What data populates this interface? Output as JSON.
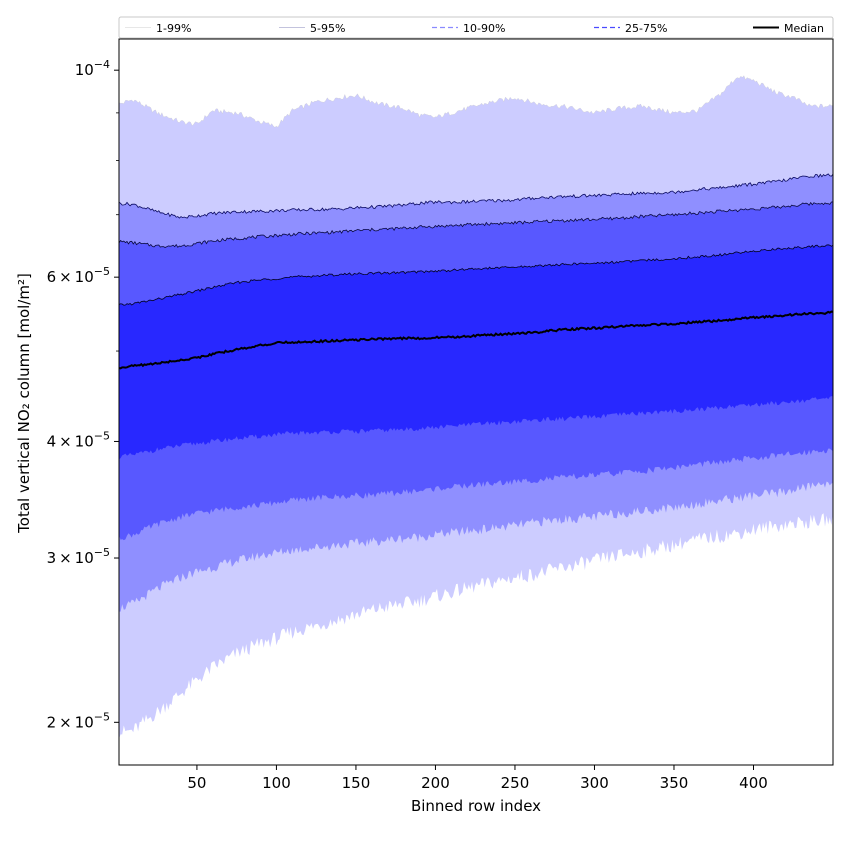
{
  "chart_data": {
    "type": "area",
    "title": "",
    "xlabel": "Binned row index",
    "ylabel": "Total vertical NO₂ column [mol/m²]",
    "xlim": [
      1,
      450
    ],
    "ylim": [
      1.8e-05,
      0.000108
    ],
    "yscale": "log",
    "grid": false,
    "legend_position": "top (expanded across full width)",
    "x_ticks": [
      50,
      100,
      150,
      200,
      250,
      300,
      350,
      400
    ],
    "x_tick_labels": [
      "50",
      "100",
      "150",
      "200",
      "250",
      "300",
      "350",
      "400"
    ],
    "y_ticks": [
      {
        "value": 2e-05,
        "mantissa": "2",
        "exponent": "−5"
      },
      {
        "value": 3e-05,
        "mantissa": "3",
        "exponent": "−5"
      },
      {
        "value": 4e-05,
        "mantissa": "4",
        "exponent": "−5"
      },
      {
        "value": 6e-05,
        "mantissa": "6",
        "exponent": "−5"
      },
      {
        "value": 0.0001,
        "mantissa": "",
        "exponent": "−4"
      }
    ],
    "y_minor_ticks": [
      5e-05,
      7e-05,
      8e-05,
      9e-05
    ],
    "tick_times": "×",
    "tick_base": "10",
    "x": [
      1,
      10,
      25,
      40,
      50,
      60,
      75,
      90,
      100,
      110,
      125,
      140,
      150,
      165,
      180,
      190,
      200,
      215,
      230,
      250,
      265,
      280,
      300,
      315,
      330,
      350,
      365,
      380,
      390,
      400,
      415,
      425,
      435,
      450
    ],
    "series": [
      {
        "name": "1-99%",
        "band": true,
        "color": "#ccccff",
        "line_color": "#c6c6c6",
        "lower": [
          1.95e-05,
          1.96e-05,
          2.05e-05,
          2.15e-05,
          2.22e-05,
          2.29e-05,
          2.37e-05,
          2.43e-05,
          2.46e-05,
          2.5e-05,
          2.54e-05,
          2.58e-05,
          2.61e-05,
          2.65e-05,
          2.68e-05,
          2.7e-05,
          2.73e-05,
          2.77e-05,
          2.81e-05,
          2.86e-05,
          2.89e-05,
          2.93e-05,
          2.98e-05,
          3.02e-05,
          3.05e-05,
          3.1e-05,
          3.14e-05,
          3.17e-05,
          3.19e-05,
          3.22e-05,
          3.25e-05,
          3.27e-05,
          3.28e-05,
          3.3e-05
        ],
        "upper": [
          9.2e-05,
          9.3e-05,
          9e-05,
          8.8e-05,
          8.75e-05,
          9.05e-05,
          9e-05,
          8.8e-05,
          8.7e-05,
          9.05e-05,
          9.25e-05,
          9.35e-05,
          9.4e-05,
          9.2e-05,
          9.1e-05,
          8.95e-05,
          8.9e-05,
          9.05e-05,
          9.2e-05,
          9.35e-05,
          9.2e-05,
          9.15e-05,
          9e-05,
          9.1e-05,
          9.15e-05,
          9e-05,
          9.05e-05,
          9.45e-05,
          9.85e-05,
          9.75e-05,
          9.45e-05,
          9.35e-05,
          9.15e-05,
          9.15e-05
        ]
      },
      {
        "name": "5-95%",
        "band": true,
        "color": "#8f8fff",
        "line_color": "#0a0a60",
        "lower": [
          2.65e-05,
          2.68e-05,
          2.78e-05,
          2.86e-05,
          2.9e-05,
          2.93e-05,
          2.98e-05,
          3.02e-05,
          3.04e-05,
          3.06e-05,
          3.08e-05,
          3.1e-05,
          3.11e-05,
          3.13e-05,
          3.15e-05,
          3.16e-05,
          3.18e-05,
          3.2e-05,
          3.22e-05,
          3.25e-05,
          3.28e-05,
          3.3e-05,
          3.32e-05,
          3.35e-05,
          3.37e-05,
          3.4e-05,
          3.43e-05,
          3.46e-05,
          3.48e-05,
          3.5e-05,
          3.52e-05,
          3.55e-05,
          3.58e-05,
          3.62e-05
        ],
        "upper": [
          7.2e-05,
          7.18e-05,
          7.05e-05,
          6.95e-05,
          6.98e-05,
          7.02e-05,
          7.05e-05,
          7.06e-05,
          7.07e-05,
          7.08e-05,
          7.09e-05,
          7.1e-05,
          7.12e-05,
          7.14e-05,
          7.17e-05,
          7.2e-05,
          7.22e-05,
          7.22e-05,
          7.24e-05,
          7.26e-05,
          7.3e-05,
          7.32e-05,
          7.34e-05,
          7.36e-05,
          7.38e-05,
          7.4e-05,
          7.45e-05,
          7.48e-05,
          7.52e-05,
          7.55e-05,
          7.6e-05,
          7.65e-05,
          7.7e-05,
          7.72e-05
        ]
      },
      {
        "name": "10-90%",
        "band": true,
        "color": "#5858ff",
        "line_color": "#0a0a40",
        "lower": [
          3.15e-05,
          3.18e-05,
          3.26e-05,
          3.32e-05,
          3.35e-05,
          3.37e-05,
          3.4e-05,
          3.42e-05,
          3.44e-05,
          3.46e-05,
          3.48e-05,
          3.49e-05,
          3.5e-05,
          3.51e-05,
          3.53e-05,
          3.54e-05,
          3.56e-05,
          3.58e-05,
          3.6e-05,
          3.62e-05,
          3.64e-05,
          3.66e-05,
          3.68e-05,
          3.7e-05,
          3.72e-05,
          3.75e-05,
          3.78e-05,
          3.8e-05,
          3.82e-05,
          3.84e-05,
          3.86e-05,
          3.88e-05,
          3.9e-05,
          3.92e-05
        ],
        "upper": [
          6.55e-05,
          6.53e-05,
          6.48e-05,
          6.48e-05,
          6.52e-05,
          6.56e-05,
          6.6e-05,
          6.63e-05,
          6.65e-05,
          6.67e-05,
          6.69e-05,
          6.71e-05,
          6.73e-05,
          6.75e-05,
          6.77e-05,
          6.79e-05,
          6.8e-05,
          6.82e-05,
          6.84e-05,
          6.86e-05,
          6.88e-05,
          6.9e-05,
          6.92e-05,
          6.94e-05,
          6.97e-05,
          7e-05,
          7.03e-05,
          7.06e-05,
          7.08e-05,
          7.1e-05,
          7.13e-05,
          7.16e-05,
          7.19e-05,
          7.21e-05
        ]
      },
      {
        "name": "25-75%",
        "band": true,
        "color": "#2828ff",
        "line_color": "#000020",
        "lower": [
          3.85e-05,
          3.87e-05,
          3.92e-05,
          3.96e-05,
          3.98e-05,
          4e-05,
          4.03e-05,
          4.05e-05,
          4.07e-05,
          4.08e-05,
          4.09e-05,
          4.1e-05,
          4.1e-05,
          4.11e-05,
          4.12e-05,
          4.13e-05,
          4.14e-05,
          4.16e-05,
          4.18e-05,
          4.2e-05,
          4.22e-05,
          4.23e-05,
          4.25e-05,
          4.27e-05,
          4.29e-05,
          4.31e-05,
          4.33e-05,
          4.35e-05,
          4.37e-05,
          4.38e-05,
          4.4e-05,
          4.42e-05,
          4.43e-05,
          4.45e-05
        ],
        "upper": [
          5.6e-05,
          5.62e-05,
          5.68e-05,
          5.75e-05,
          5.8e-05,
          5.85e-05,
          5.92e-05,
          5.96e-05,
          5.98e-05,
          6e-05,
          6.02e-05,
          6.04e-05,
          6.05e-05,
          6.06e-05,
          6.07e-05,
          6.08e-05,
          6.09e-05,
          6.11e-05,
          6.13e-05,
          6.15e-05,
          6.17e-05,
          6.19e-05,
          6.21e-05,
          6.23e-05,
          6.25e-05,
          6.28e-05,
          6.31e-05,
          6.34e-05,
          6.37e-05,
          6.4e-05,
          6.43e-05,
          6.45e-05,
          6.47e-05,
          6.49e-05
        ]
      },
      {
        "name": "Median",
        "band": false,
        "color": "#000000",
        "values": [
          4.8e-05,
          4.82e-05,
          4.85e-05,
          4.89e-05,
          4.92e-05,
          4.96e-05,
          5.02e-05,
          5.07e-05,
          5.1e-05,
          5.11e-05,
          5.12e-05,
          5.13e-05,
          5.14e-05,
          5.15e-05,
          5.16e-05,
          5.16e-05,
          5.17e-05,
          5.18e-05,
          5.2e-05,
          5.22e-05,
          5.24e-05,
          5.27e-05,
          5.29e-05,
          5.31e-05,
          5.33e-05,
          5.35e-05,
          5.37e-05,
          5.39e-05,
          5.41e-05,
          5.43e-05,
          5.45e-05,
          5.47e-05,
          5.48e-05,
          5.5e-05
        ]
      }
    ]
  }
}
